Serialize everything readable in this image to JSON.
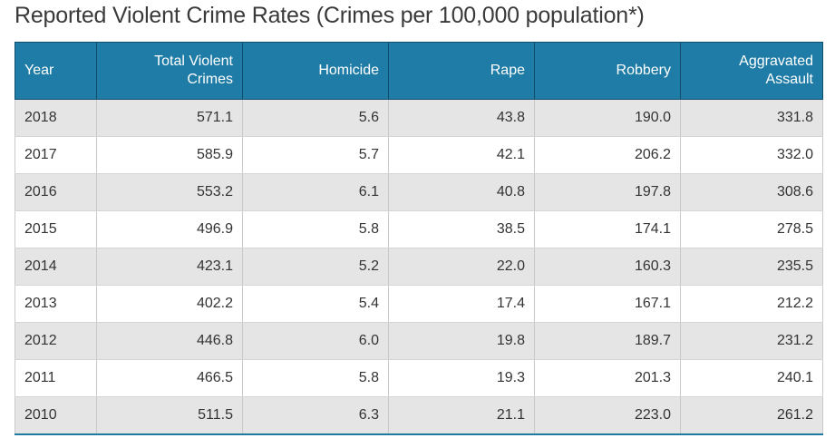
{
  "title": "Reported Violent Crime Rates (Crimes per 100,000 population*)",
  "table": {
    "headers": [
      "Year",
      "Total Violent Crimes",
      "Homicide",
      "Rape",
      "Robbery",
      "Aggravated Assault"
    ],
    "rows": [
      [
        "2018",
        "571.1",
        "5.6",
        "43.8",
        "190.0",
        "331.8"
      ],
      [
        "2017",
        "585.9",
        "5.7",
        "42.1",
        "206.2",
        "332.0"
      ],
      [
        "2016",
        "553.2",
        "6.1",
        "40.8",
        "197.8",
        "308.6"
      ],
      [
        "2015",
        "496.9",
        "5.8",
        "38.5",
        "174.1",
        "278.5"
      ],
      [
        "2014",
        "423.1",
        "5.2",
        "22.0",
        "160.3",
        "235.5"
      ],
      [
        "2013",
        "402.2",
        "5.4",
        "17.4",
        "167.1",
        "212.2"
      ],
      [
        "2012",
        "446.8",
        "6.0",
        "19.8",
        "189.7",
        "231.2"
      ],
      [
        "2011",
        "466.5",
        "5.8",
        "19.3",
        "201.3",
        "240.1"
      ],
      [
        "2010",
        "511.5",
        "6.3",
        "21.1",
        "223.0",
        "261.2"
      ]
    ]
  },
  "colors": {
    "header_bg": "#1f7ca6",
    "header_text": "#ffffff",
    "odd_row_bg": "#e5e5e5",
    "even_row_bg": "#ffffff"
  }
}
